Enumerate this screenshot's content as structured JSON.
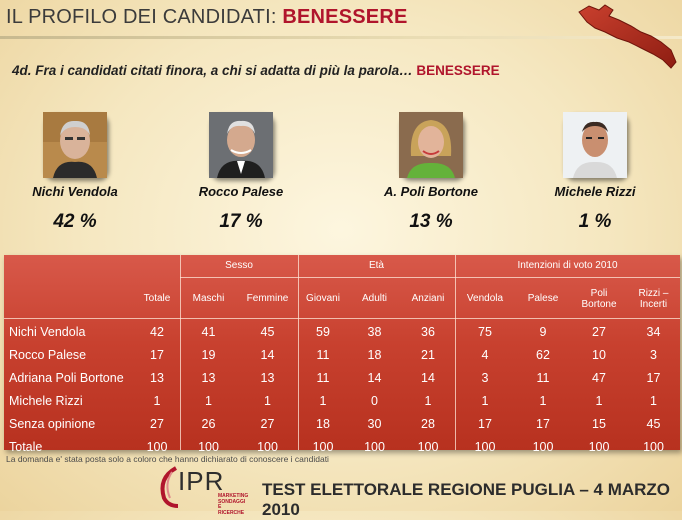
{
  "header": {
    "title_main": "IL PROFILO DEI CANDIDATI: ",
    "title_accent": "BENESSERE"
  },
  "question": {
    "text": "4d. Fra i candidati citati finora, a chi si adatta di più la parola… ",
    "accent": "BENESSERE"
  },
  "candidates": [
    {
      "name": "Nichi Vendola",
      "pct": "42 %"
    },
    {
      "name": "Rocco Palese",
      "pct": "17 %"
    },
    {
      "name": "A. Poli Bortone",
      "pct": "13 %"
    },
    {
      "name": "Michele Rizzi",
      "pct": "1 %"
    }
  ],
  "table": {
    "groups": [
      "Sesso",
      "Età",
      "Intenzioni di voto 2010"
    ],
    "headers": [
      "Totale",
      "Maschi",
      "Femmine",
      "Giovani",
      "Adulti",
      "Anziani",
      "Vendola",
      "Palese",
      "Poli Bortone",
      "Rizzi – Incerti"
    ],
    "rows": [
      {
        "label": "Nichi Vendola",
        "values": [
          "42",
          "41",
          "45",
          "59",
          "38",
          "36",
          "75",
          "9",
          "27",
          "34"
        ]
      },
      {
        "label": "Rocco Palese",
        "values": [
          "17",
          "19",
          "14",
          "11",
          "18",
          "21",
          "4",
          "62",
          "10",
          "3"
        ]
      },
      {
        "label": "Adriana Poli Bortone",
        "values": [
          "13",
          "13",
          "13",
          "11",
          "14",
          "14",
          "3",
          "11",
          "47",
          "17"
        ]
      },
      {
        "label": "Michele Rizzi",
        "values": [
          "1",
          "1",
          "1",
          "1",
          "0",
          "1",
          "1",
          "1",
          "1",
          "1"
        ]
      },
      {
        "label": "Senza opinione",
        "values": [
          "27",
          "26",
          "27",
          "18",
          "30",
          "28",
          "17",
          "17",
          "15",
          "45"
        ]
      },
      {
        "label": "Totale",
        "values": [
          "100",
          "100",
          "100",
          "100",
          "100",
          "100",
          "100",
          "100",
          "100",
          "100"
        ]
      }
    ]
  },
  "footnote": "La domanda e' stata posta solo a coloro che hanno dichiarato di conoscere i candidati",
  "logo": {
    "text": "IPR",
    "subtitle_1": "MARKETING",
    "subtitle_2": "SONDAGGI E RICERCHE"
  },
  "footer_title": "TEST ELETTORALE REGIONE PUGLIA – 4 MARZO 2010",
  "colors": {
    "accent": "#b0152c",
    "table_bg": "#c8412f",
    "page_bg": "#f7ecd0"
  }
}
